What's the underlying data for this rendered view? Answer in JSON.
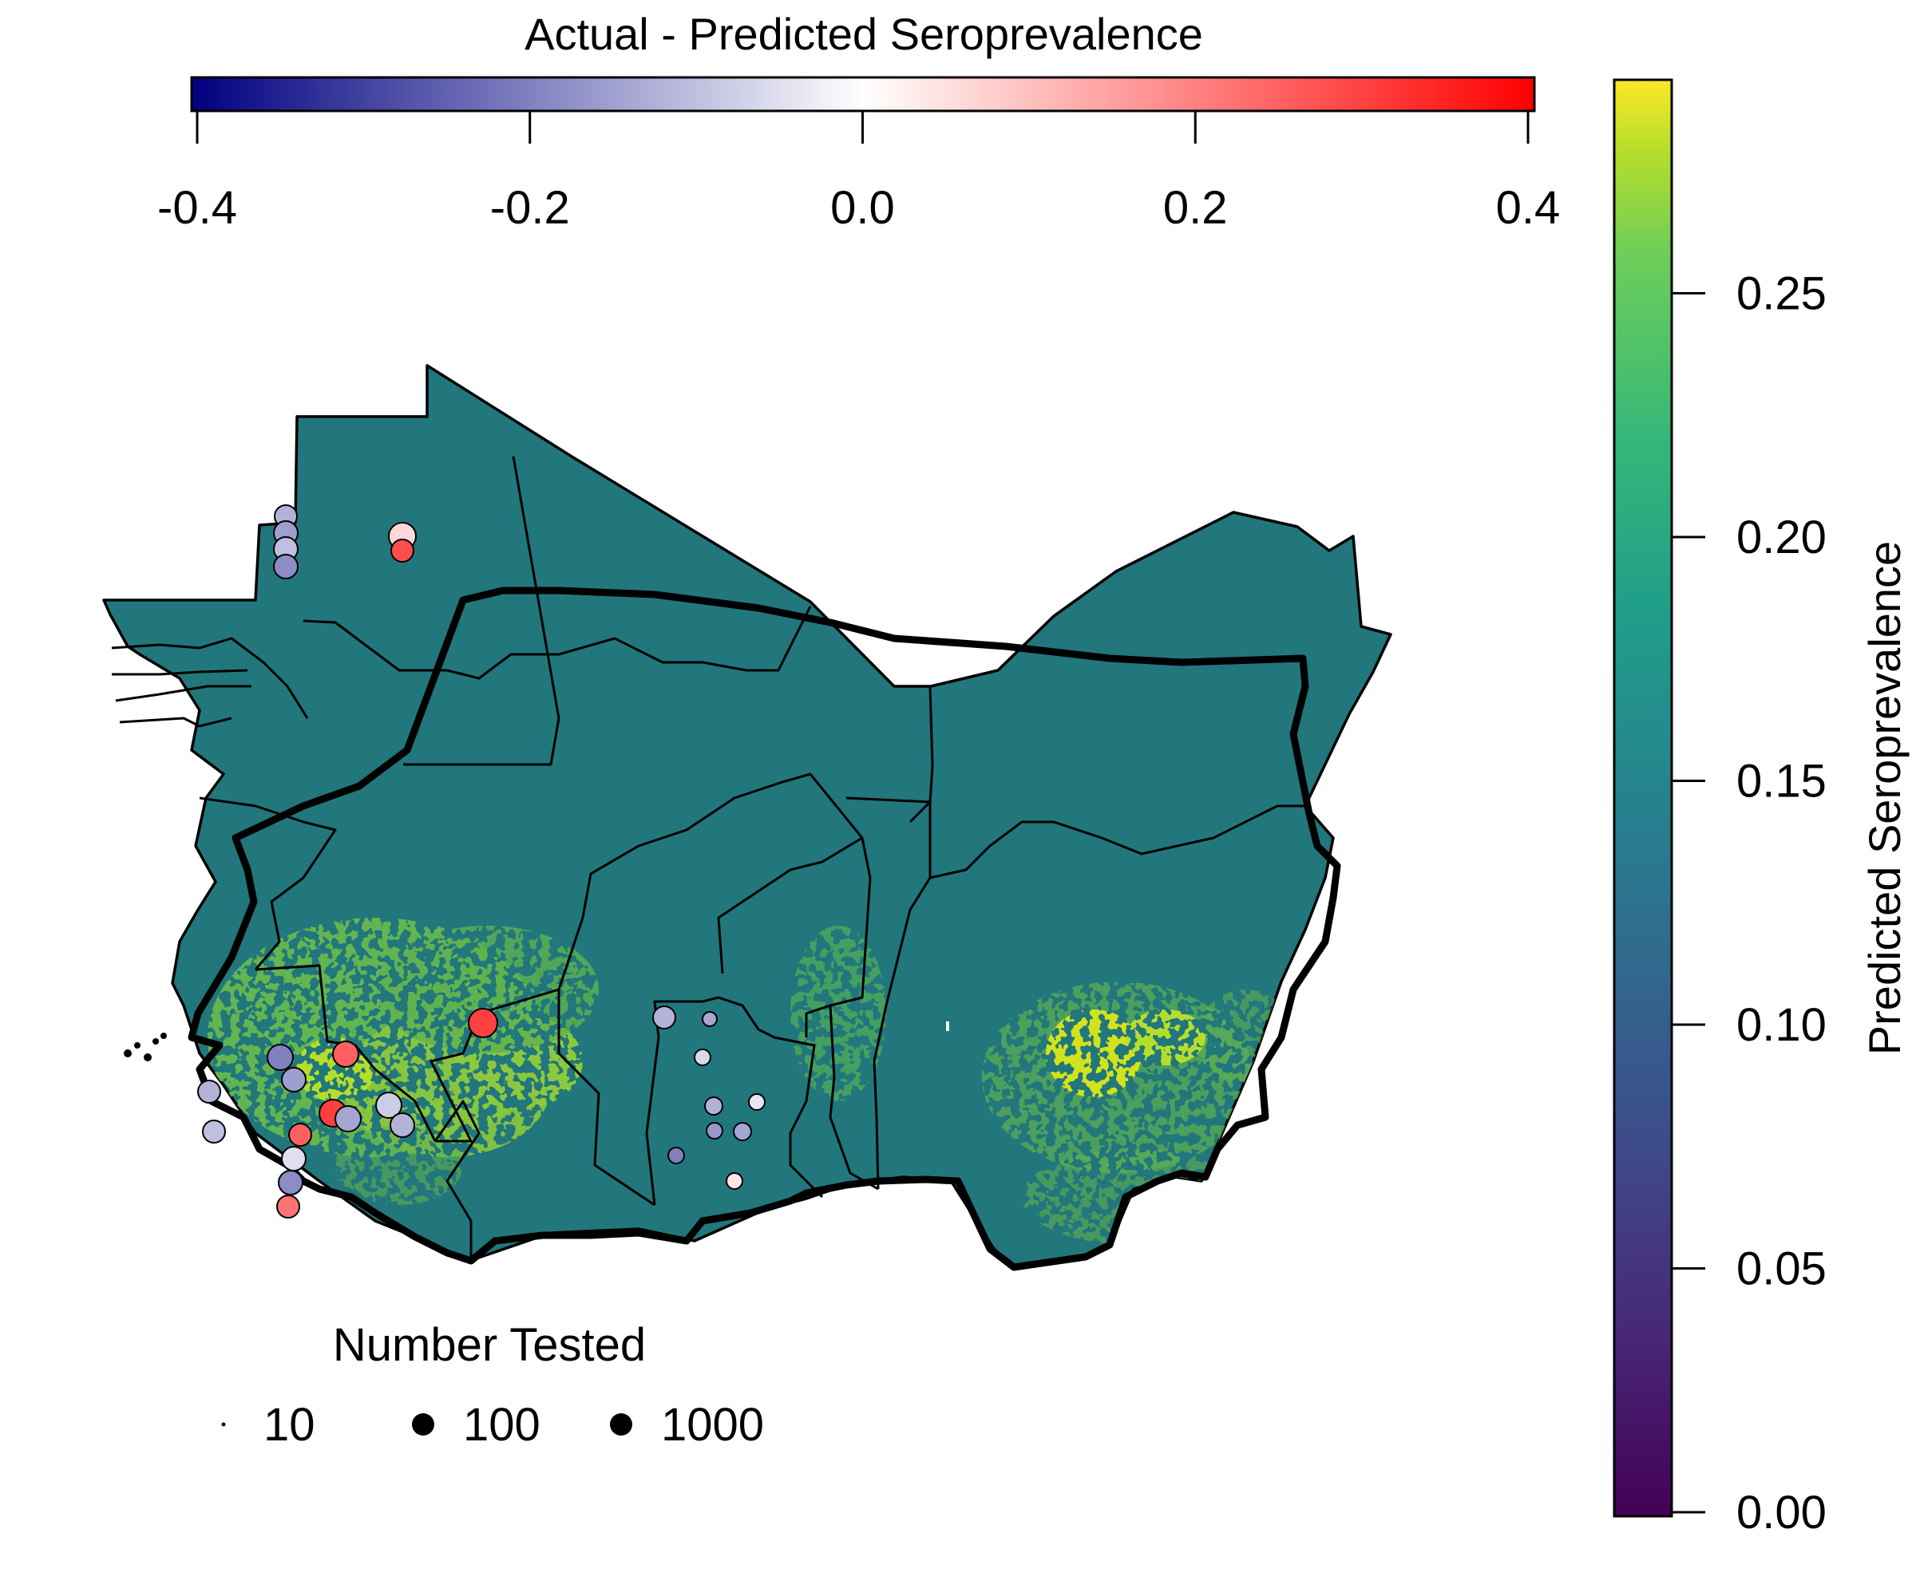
{
  "top_colorbar": {
    "title": "Actual - Predicted Seroprevalence",
    "ticks": [
      -0.4,
      -0.2,
      0.0,
      0.2,
      0.4
    ],
    "tick_labels": [
      "-0.4",
      "-0.2",
      "0.0",
      "0.2",
      "0.4"
    ],
    "range": [
      -0.4,
      0.4
    ],
    "colors": {
      "low": "#000080",
      "mid": "#ffffff",
      "high": "#ff0000"
    }
  },
  "right_colorbar": {
    "title": "Predicted Seroprevalence",
    "ticks": [
      0.0,
      0.05,
      0.1,
      0.15,
      0.2,
      0.25
    ],
    "tick_labels": [
      "0.00",
      "0.05",
      "0.10",
      "0.15",
      "0.20",
      "0.25"
    ],
    "range": [
      0.0,
      0.29
    ],
    "palette": "viridis"
  },
  "size_legend": {
    "title": "Number Tested",
    "items": [
      {
        "label": "10",
        "value": 10
      },
      {
        "label": "100",
        "value": 100
      },
      {
        "label": "1000",
        "value": 1000
      }
    ]
  },
  "map": {
    "region": "West Africa",
    "base_color": "#21777c",
    "highlight_color": "#8cc83c",
    "hotspot_color": "#d2e21b",
    "border_color": "#000000"
  },
  "chart_data": {
    "type": "scatter",
    "x": [],
    "y": [],
    "series": [
      {
        "values": [
          -0.12,
          -0.15,
          -0.1,
          -0.18,
          0.06,
          0.28,
          0.3,
          -0.12,
          -0.1,
          -0.05,
          -0.18,
          0.22,
          0.25,
          -0.2,
          -0.15,
          0.3,
          -0.14,
          0.25,
          -0.08,
          -0.12,
          -0.12,
          -0.14,
          -0.06,
          -0.12,
          -0.16,
          -0.04,
          -0.14,
          -0.2,
          0.04
        ]
      }
    ]
  }
}
